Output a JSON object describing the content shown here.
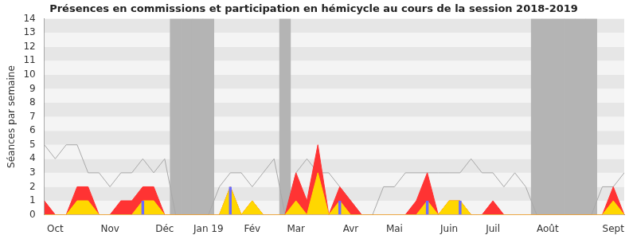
{
  "chart_data": {
    "type": "line",
    "title": "Présences en commissions et participation en hémicycle au cours de la session 2018-2019",
    "y_label": "Séances par semaine",
    "categories": [
      null,
      "Oct",
      null,
      null,
      null,
      null,
      "Nov",
      null,
      null,
      null,
      null,
      "Déc",
      null,
      null,
      null,
      "Jan 19",
      null,
      null,
      null,
      "Fév",
      null,
      null,
      null,
      "Mar",
      null,
      null,
      null,
      null,
      "Avr",
      null,
      null,
      null,
      "Mai",
      null,
      null,
      null,
      null,
      "Juin",
      null,
      null,
      null,
      "Juil",
      null,
      null,
      null,
      null,
      "Août",
      null,
      null,
      null,
      null,
      null,
      "Sept",
      null
    ],
    "series": [
      {
        "type": "bar",
        "color": "#b4b4b4",
        "values": [
          0,
          0,
          0,
          0,
          0,
          0,
          0,
          0,
          0,
          0,
          0,
          0,
          14,
          14,
          14,
          14,
          0,
          0,
          0,
          0,
          0,
          0,
          14,
          0,
          0,
          0,
          0,
          0,
          0,
          0,
          0,
          0,
          0,
          0,
          0,
          0,
          0,
          0,
          0,
          0,
          0,
          0,
          0,
          0,
          0,
          14,
          14,
          14,
          14,
          14,
          14,
          0,
          0,
          0
        ]
      },
      {
        "type": "line",
        "color": "#a8a8a8",
        "values": [
          5,
          4,
          5,
          5,
          3,
          3,
          2,
          3,
          3,
          4,
          3,
          4,
          0,
          0,
          0,
          0,
          2,
          3,
          3,
          2,
          3,
          4,
          0,
          3,
          4,
          3,
          3,
          2,
          1,
          0,
          0,
          2,
          2,
          3,
          3,
          3,
          3,
          3,
          3,
          4,
          3,
          3,
          2,
          3,
          2,
          0,
          0,
          0,
          0,
          0,
          0,
          2,
          2,
          3
        ]
      },
      {
        "type": "area",
        "color": "#ff3333",
        "values": [
          1,
          0,
          0,
          2,
          2,
          0,
          0,
          1,
          1,
          2,
          2,
          0,
          0,
          0,
          0,
          0,
          0,
          2,
          0,
          1,
          0,
          0,
          0,
          3,
          1,
          5,
          0,
          2,
          1,
          0,
          0,
          0,
          0,
          0,
          1,
          3,
          0,
          1,
          1,
          0,
          0,
          1,
          0,
          0,
          0,
          0,
          0,
          0,
          0,
          0,
          0,
          0,
          2,
          0
        ]
      },
      {
        "type": "area",
        "color": "#ffd700",
        "values": [
          0,
          0,
          0,
          1,
          1,
          0,
          0,
          0,
          0,
          1,
          1,
          0,
          0,
          0,
          0,
          0,
          0,
          2,
          0,
          1,
          0,
          0,
          0,
          1,
          0,
          3,
          0,
          1,
          0,
          0,
          0,
          0,
          0,
          0,
          0,
          1,
          0,
          1,
          1,
          0,
          0,
          0,
          0,
          0,
          0,
          0,
          0,
          0,
          0,
          0,
          0,
          0,
          1,
          0
        ]
      },
      {
        "type": "bar",
        "color": "#6b6bff",
        "values": [
          0,
          0,
          0,
          0,
          0,
          0,
          0,
          0,
          0,
          1,
          0,
          0,
          0,
          0,
          0,
          0,
          0,
          2,
          0,
          0,
          0,
          0,
          0,
          0,
          0,
          0,
          0,
          1,
          0,
          0,
          0,
          0,
          0,
          0,
          0,
          1,
          0,
          0,
          1,
          0,
          0,
          0,
          0,
          0,
          0,
          0,
          0,
          0,
          0,
          0,
          0,
          0,
          0,
          0
        ]
      }
    ],
    "ylim": [
      0,
      14
    ],
    "yticks": [
      0,
      1,
      2,
      3,
      4,
      5,
      6,
      7,
      8,
      9,
      10,
      11,
      12,
      13,
      14
    ],
    "grid": true
  }
}
